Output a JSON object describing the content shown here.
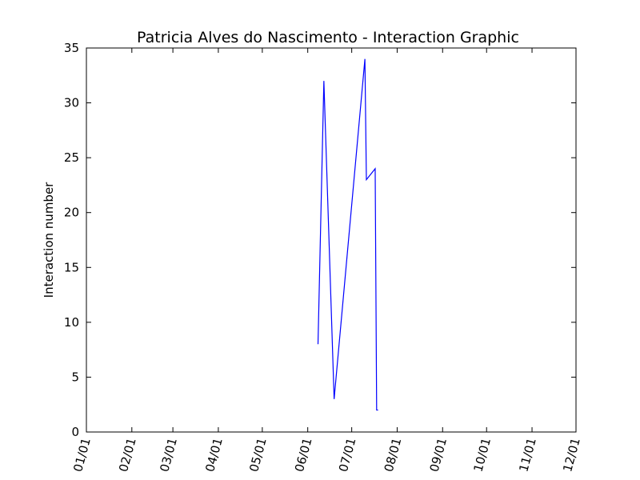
{
  "chart_data": {
    "type": "line",
    "title": "Patricia Alves do Nascimento - Interaction Graphic",
    "xlabel": "",
    "ylabel": "Interaction number",
    "ylim": [
      0,
      35
    ],
    "xlim": [
      "01/01",
      "12/01"
    ],
    "x_tick_labels": [
      "01/01",
      "02/01",
      "03/01",
      "04/01",
      "05/01",
      "06/01",
      "07/01",
      "08/01",
      "09/01",
      "10/01",
      "11/01",
      "12/01"
    ],
    "y_tick_labels": [
      "0",
      "5",
      "10",
      "15",
      "20",
      "25",
      "30",
      "35"
    ],
    "y_ticks": [
      0,
      5,
      10,
      15,
      20,
      25,
      30,
      35
    ],
    "grid": false,
    "series": [
      {
        "color": "#0000ff",
        "points": [
          {
            "x": "06/08",
            "y": 8
          },
          {
            "x": "06/12",
            "y": 32
          },
          {
            "x": "06/19",
            "y": 3
          },
          {
            "x": "07/10",
            "y": 34
          },
          {
            "x": "07/11",
            "y": 23
          },
          {
            "x": "07/17",
            "y": 24
          },
          {
            "x": "07/18",
            "y": 2
          },
          {
            "x": "07/19",
            "y": 2
          }
        ]
      }
    ]
  }
}
